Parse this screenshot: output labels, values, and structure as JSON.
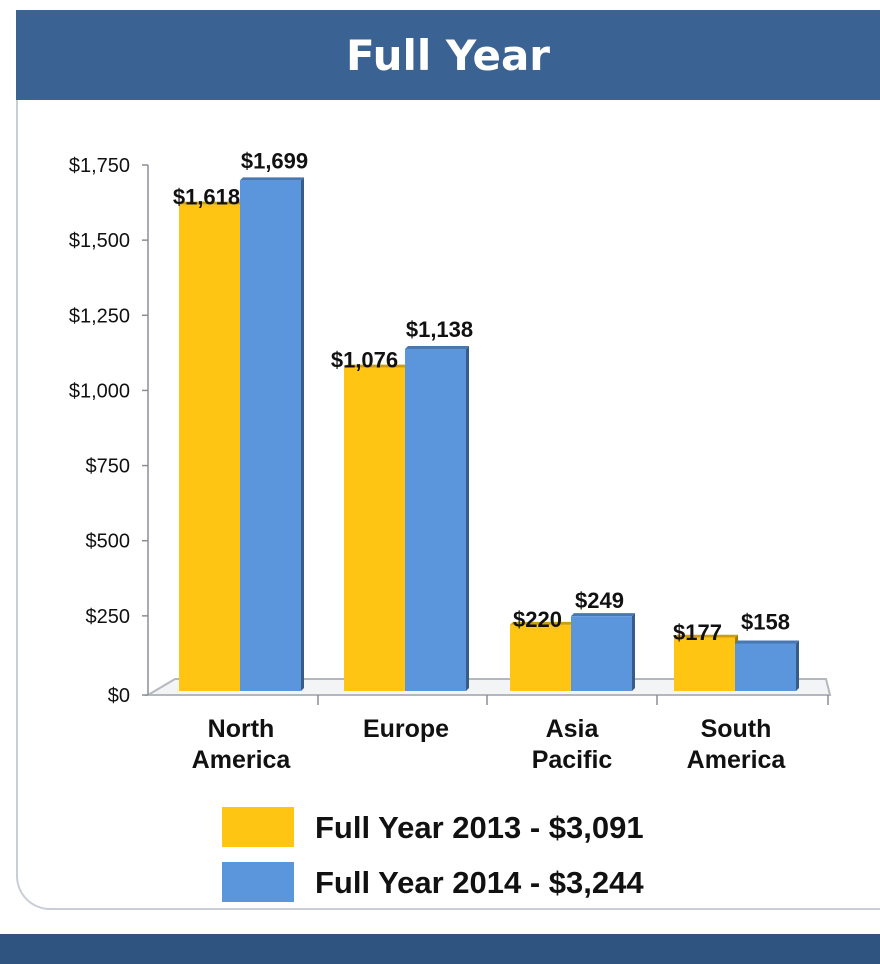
{
  "header": {
    "title": "Full Year"
  },
  "colors": {
    "header_bg": "#3a6393",
    "series_2013": "#ffc512",
    "series_2014": "#5b95dc",
    "footer_bg": "#2f5480"
  },
  "chart_data": {
    "type": "bar",
    "title": "",
    "xlabel": "",
    "ylabel": "",
    "categories": [
      [
        "North",
        "America"
      ],
      [
        "Europe"
      ],
      [
        "Asia",
        "Pacific"
      ],
      [
        "South",
        "America"
      ]
    ],
    "series": [
      {
        "name": "Full Year 2013 - $3,091",
        "values": [
          1618,
          1076,
          220,
          177
        ],
        "labels": [
          "$1,618",
          "$1,076",
          "$220",
          "$177"
        ],
        "color": "#ffc512"
      },
      {
        "name": "Full Year 2014 - $3,244",
        "values": [
          1699,
          1138,
          249,
          158
        ],
        "labels": [
          "$1,699",
          "$1,138",
          "$249",
          "$158"
        ],
        "color": "#5b95dc"
      }
    ],
    "ylim": [
      0,
      1750
    ],
    "yticks": [
      0,
      250,
      500,
      750,
      1000,
      1250,
      1500,
      1750
    ],
    "ytick_labels": [
      "$0",
      "$250",
      "$500",
      "$750",
      "$1,000",
      "$1,250",
      "$1,500",
      "$1,750"
    ],
    "grid": false,
    "legend_position": "bottom"
  }
}
